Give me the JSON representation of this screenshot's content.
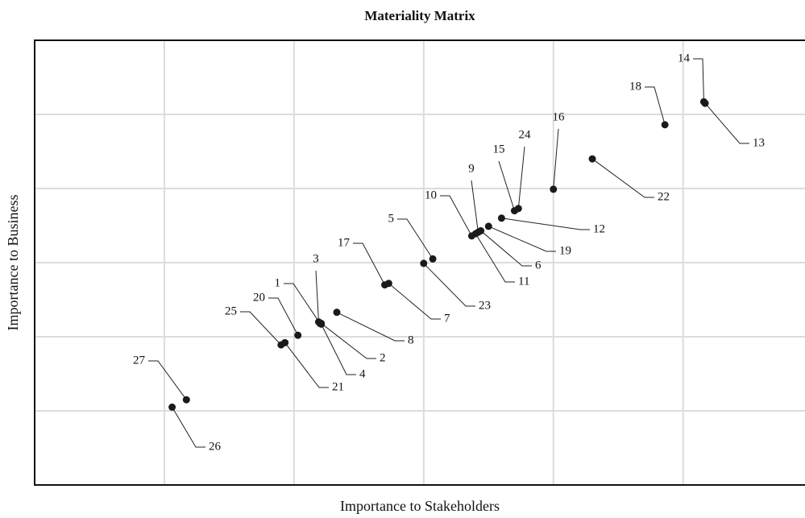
{
  "chart_data": {
    "type": "scatter",
    "title": "Materiality Matrix",
    "xlabel": "Importance to Stakeholders",
    "ylabel": "Importance to Business",
    "point_labels": [
      "1",
      "2",
      "3",
      "4",
      "5",
      "6",
      "7",
      "8",
      "9",
      "10",
      "11",
      "12",
      "13",
      "14",
      "15",
      "16",
      "17",
      "18",
      "19",
      "20",
      "21",
      "22",
      "23",
      "24",
      "25",
      "26",
      "27"
    ],
    "x": [
      2.2,
      2.21,
      2.19,
      2.21,
      3.07,
      3.44,
      2.73,
      2.33,
      3.42,
      3.37,
      3.4,
      3.6,
      5.17,
      5.16,
      3.7,
      4.0,
      2.7,
      4.86,
      3.5,
      2.03,
      1.93,
      4.3,
      3.0,
      3.73,
      1.9,
      1.06,
      1.17
    ],
    "values": [
      2.18,
      2.18,
      2.2,
      2.17,
      3.05,
      3.43,
      2.72,
      2.33,
      3.41,
      3.36,
      3.39,
      3.6,
      5.15,
      5.17,
      3.7,
      3.99,
      2.7,
      4.86,
      3.49,
      2.02,
      1.92,
      4.4,
      2.99,
      3.73,
      1.89,
      1.05,
      1.15
    ],
    "color": "#1a1a1a",
    "xlim": [
      0,
      5.94
    ],
    "ylim": [
      0,
      6
    ],
    "xticks": [
      1,
      2,
      3,
      4,
      5
    ],
    "yticks": [
      1,
      2,
      3,
      4,
      5
    ],
    "grid": true
  }
}
